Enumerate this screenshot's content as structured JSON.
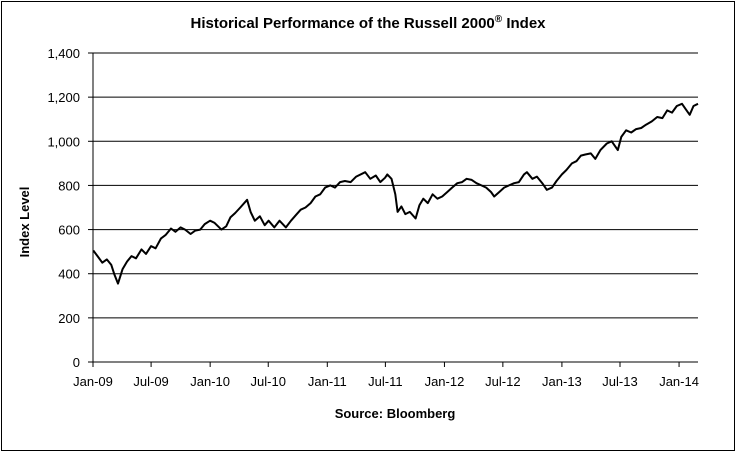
{
  "chart_data": {
    "type": "line",
    "title": "Historical Performance of the Russell 2000",
    "title_superscript": "®",
    "title_suffix": " Index",
    "ylabel": "Index Level",
    "xlabel": "Source: Bloomberg",
    "ylim": [
      0,
      1400
    ],
    "yticks": [
      "0",
      "200",
      "400",
      "600",
      "800",
      "1,000",
      "1,200",
      "1,400"
    ],
    "xticks": [
      "Jan-09",
      "Jul-09",
      "Jan-10",
      "Jul-10",
      "Jan-11",
      "Jul-11",
      "Jan-12",
      "Jul-12",
      "Jan-13",
      "Jul-13",
      "Jan-14"
    ],
    "grid": true,
    "legend": "none",
    "series": [
      {
        "color": "#000000",
        "x": [
          "2009-01-02",
          "2009-01-16",
          "2009-01-30",
          "2009-02-13",
          "2009-02-27",
          "2009-03-09",
          "2009-03-20",
          "2009-04-03",
          "2009-04-17",
          "2009-05-01",
          "2009-05-15",
          "2009-06-01",
          "2009-06-15",
          "2009-07-01",
          "2009-07-15",
          "2009-08-01",
          "2009-08-15",
          "2009-09-01",
          "2009-09-15",
          "2009-10-01",
          "2009-10-15",
          "2009-11-01",
          "2009-11-15",
          "2009-12-01",
          "2009-12-15",
          "2010-01-01",
          "2010-01-15",
          "2010-02-05",
          "2010-02-20",
          "2010-03-05",
          "2010-03-20",
          "2010-04-05",
          "2010-04-26",
          "2010-05-07",
          "2010-05-20",
          "2010-06-05",
          "2010-06-20",
          "2010-07-02",
          "2010-07-20",
          "2010-08-05",
          "2010-08-25",
          "2010-09-10",
          "2010-09-25",
          "2010-10-10",
          "2010-10-25",
          "2010-11-10",
          "2010-11-25",
          "2010-12-10",
          "2010-12-25",
          "2011-01-10",
          "2011-01-25",
          "2011-02-10",
          "2011-02-25",
          "2011-03-15",
          "2011-04-01",
          "2011-04-29",
          "2011-05-15",
          "2011-06-01",
          "2011-06-15",
          "2011-06-30",
          "2011-07-07",
          "2011-07-20",
          "2011-08-01",
          "2011-08-08",
          "2011-08-20",
          "2011-09-01",
          "2011-09-15",
          "2011-10-03",
          "2011-10-15",
          "2011-10-27",
          "2011-11-10",
          "2011-11-25",
          "2011-12-10",
          "2011-12-25",
          "2012-01-10",
          "2012-01-25",
          "2012-02-10",
          "2012-02-25",
          "2012-03-10",
          "2012-03-26",
          "2012-04-10",
          "2012-04-25",
          "2012-05-10",
          "2012-05-25",
          "2012-06-04",
          "2012-06-20",
          "2012-07-05",
          "2012-07-20",
          "2012-08-05",
          "2012-08-20",
          "2012-09-05",
          "2012-09-14",
          "2012-10-01",
          "2012-10-15",
          "2012-11-01",
          "2012-11-15",
          "2012-12-01",
          "2012-12-15",
          "2013-01-01",
          "2013-01-15",
          "2013-02-01",
          "2013-02-15",
          "2013-03-01",
          "2013-03-15",
          "2013-04-01",
          "2013-04-15",
          "2013-05-01",
          "2013-05-21",
          "2013-06-05",
          "2013-06-24",
          "2013-07-05",
          "2013-07-20",
          "2013-08-05",
          "2013-08-20",
          "2013-09-05",
          "2013-09-20",
          "2013-10-08",
          "2013-10-25",
          "2013-11-10",
          "2013-11-25",
          "2013-12-10",
          "2013-12-25",
          "2014-01-10",
          "2014-01-22",
          "2014-02-03",
          "2014-02-15",
          "2014-03-01"
        ],
        "values": [
          505,
          478,
          450,
          465,
          440,
          395,
          355,
          420,
          455,
          480,
          470,
          510,
          490,
          525,
          515,
          560,
          575,
          605,
          590,
          610,
          600,
          580,
          595,
          600,
          625,
          640,
          630,
          600,
          615,
          655,
          675,
          700,
          735,
          680,
          640,
          660,
          620,
          640,
          610,
          640,
          610,
          640,
          665,
          690,
          700,
          720,
          750,
          760,
          790,
          800,
          790,
          815,
          820,
          815,
          840,
          860,
          830,
          845,
          815,
          835,
          850,
          830,
          760,
          680,
          705,
          670,
          680,
          650,
          710,
          740,
          720,
          760,
          740,
          750,
          770,
          790,
          810,
          815,
          830,
          825,
          810,
          800,
          790,
          770,
          750,
          770,
          790,
          800,
          810,
          815,
          850,
          860,
          830,
          840,
          810,
          780,
          790,
          820,
          850,
          870,
          900,
          910,
          935,
          940,
          945,
          920,
          960,
          990,
          1000,
          960,
          1020,
          1050,
          1040,
          1055,
          1060,
          1075,
          1090,
          1110,
          1105,
          1140,
          1130,
          1160,
          1170,
          1145,
          1120,
          1160,
          1170
        ]
      }
    ]
  }
}
